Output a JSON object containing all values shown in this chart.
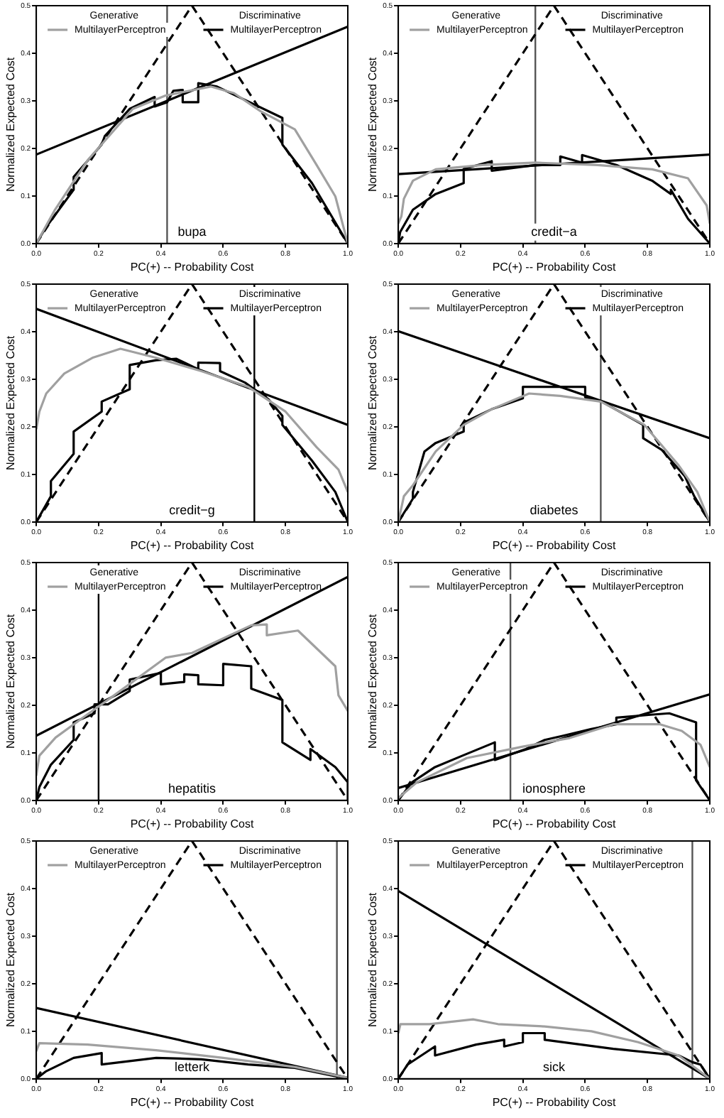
{
  "chart_data": [
    {
      "type": "line",
      "xlabel": "PC(+) -- Probability Cost",
      "ylabel": "Normalized Expected Cost",
      "annotations": [
        "Generative",
        "Discriminative",
        "bupa"
      ],
      "legend": "top",
      "grid": false,
      "xlim": [
        0,
        1
      ],
      "ylim": [
        0,
        0.5
      ],
      "xticks": [
        {
          "value": 0,
          "label": "0.0"
        },
        {
          "value": 0.2,
          "label": "0.2"
        },
        {
          "value": 0.4,
          "label": "0.4"
        },
        {
          "value": 0.6,
          "label": "0.6"
        },
        {
          "value": 0.8,
          "label": "0.8"
        },
        {
          "value": 1,
          "label": "1.0"
        }
      ],
      "yticks": [
        {
          "value": 0,
          "label": "0.0"
        },
        {
          "value": 0.1,
          "label": "0.1"
        },
        {
          "value": 0.2,
          "label": "0.2"
        },
        {
          "value": 0.3,
          "label": "0.3"
        },
        {
          "value": 0.4,
          "label": "0.4"
        },
        {
          "value": 0.5,
          "label": "0.5"
        }
      ],
      "ref_lines": [
        {
          "axis": "x",
          "value": 0.42,
          "color": "#555555"
        }
      ],
      "series": [
        {
          "name": "MultilayerPerceptron",
          "color": "#a0a0a0",
          "x": [
            0,
            0.06,
            0.165,
            0.31,
            0.415,
            0.56,
            0.635,
            0.72,
            0.83,
            0.9,
            0.96,
            1
          ],
          "values": [
            0,
            0.071,
            0.175,
            0.283,
            0.311,
            0.33,
            0.316,
            0.278,
            0.24,
            0.165,
            0.099,
            0
          ]
        },
        {
          "name": "MultilayerPerceptron",
          "color": "#000000",
          "x": [
            0,
            0.03,
            0.12,
            0.12,
            0.21,
            0.22,
            0.3,
            0.38,
            0.38,
            0.42,
            0.44,
            0.47,
            0.47,
            0.52,
            0.52,
            0.58,
            0.79,
            0.79,
            0.885,
            1
          ],
          "values": [
            0,
            0.033,
            0.113,
            0.14,
            0.208,
            0.226,
            0.283,
            0.308,
            0.288,
            0.297,
            0.321,
            0.323,
            0.297,
            0.297,
            0.337,
            0.33,
            0.264,
            0.208,
            0.127,
            0
          ]
        },
        {
          "color": "#000000",
          "x": [
            0,
            1
          ],
          "values": [
            0.187,
            0.456
          ]
        },
        {
          "color": "#000000",
          "line_style": "dashed",
          "x": [
            0,
            0.5,
            1
          ],
          "values": [
            0,
            0.5,
            0
          ]
        }
      ]
    },
    {
      "type": "line",
      "xlabel": "PC(+) -- Probability Cost",
      "ylabel": "Normalized Expected Cost",
      "annotations": [
        "Generative",
        "Discriminative",
        "credit−a"
      ],
      "legend": "top",
      "grid": false,
      "xlim": [
        0,
        1
      ],
      "ylim": [
        0,
        0.5
      ],
      "xticks": [
        {
          "value": 0,
          "label": "0.0"
        },
        {
          "value": 0.2,
          "label": "0.2"
        },
        {
          "value": 0.4,
          "label": "0.4"
        },
        {
          "value": 0.6,
          "label": "0.6"
        },
        {
          "value": 0.8,
          "label": "0.8"
        },
        {
          "value": 1,
          "label": "1.0"
        }
      ],
      "yticks": [
        {
          "value": 0,
          "label": "0.0"
        },
        {
          "value": 0.1,
          "label": "0.1"
        },
        {
          "value": 0.2,
          "label": "0.2"
        },
        {
          "value": 0.3,
          "label": "0.3"
        },
        {
          "value": 0.4,
          "label": "0.4"
        },
        {
          "value": 0.5,
          "label": "0.5"
        }
      ],
      "ref_lines": [
        {
          "axis": "x",
          "value": 0.44,
          "color": "#555555"
        }
      ],
      "series": [
        {
          "name": "MultilayerPerceptron",
          "color": "#a0a0a0",
          "x": [
            0,
            0.01,
            0.018,
            0.047,
            0.12,
            0.27,
            0.44,
            0.64,
            0.815,
            0.93,
            0.99,
            1
          ],
          "values": [
            0.042,
            0.057,
            0.094,
            0.132,
            0.156,
            0.165,
            0.17,
            0.165,
            0.156,
            0.137,
            0.08,
            0.042
          ]
        },
        {
          "name": "MultilayerPerceptron",
          "color": "#000000",
          "x": [
            0,
            0.006,
            0.047,
            0.12,
            0.21,
            0.21,
            0.3,
            0.3,
            0.44,
            0.52,
            0.52,
            0.59,
            0.59,
            0.7,
            0.815,
            0.875,
            0.875,
            0.93,
            1
          ],
          "values": [
            0,
            0.024,
            0.071,
            0.104,
            0.127,
            0.157,
            0.173,
            0.153,
            0.165,
            0.165,
            0.183,
            0.17,
            0.186,
            0.165,
            0.132,
            0.104,
            0.113,
            0.052,
            0
          ]
        },
        {
          "color": "#000000",
          "x": [
            0,
            1
          ],
          "values": [
            0.146,
            0.187
          ]
        },
        {
          "color": "#000000",
          "line_style": "dashed",
          "x": [
            0,
            0.5,
            1
          ],
          "values": [
            0,
            0.5,
            0
          ]
        }
      ]
    },
    {
      "type": "line",
      "xlabel": "PC(+) -- Probability Cost",
      "ylabel": "Normalized Expected Cost",
      "annotations": [
        "Generative",
        "Discriminative",
        "credit−g"
      ],
      "legend": "top",
      "grid": false,
      "xlim": [
        0,
        1
      ],
      "ylim": [
        0,
        0.5
      ],
      "xticks": [
        {
          "value": 0,
          "label": "0.0"
        },
        {
          "value": 0.2,
          "label": "0.2"
        },
        {
          "value": 0.4,
          "label": "0.4"
        },
        {
          "value": 0.6,
          "label": "0.6"
        },
        {
          "value": 0.8,
          "label": "0.8"
        },
        {
          "value": 1,
          "label": "1.0"
        }
      ],
      "yticks": [
        {
          "value": 0,
          "label": "0.0"
        },
        {
          "value": 0.1,
          "label": "0.1"
        },
        {
          "value": 0.2,
          "label": "0.2"
        },
        {
          "value": 0.3,
          "label": "0.3"
        },
        {
          "value": 0.4,
          "label": "0.4"
        },
        {
          "value": 0.5,
          "label": "0.5"
        }
      ],
      "ref_lines": [
        {
          "axis": "x",
          "value": 0.7,
          "color": "#000000"
        }
      ],
      "series": [
        {
          "name": "MultilayerPerceptron",
          "color": "#a0a0a0",
          "x": [
            0,
            0.01,
            0.032,
            0.09,
            0.18,
            0.27,
            0.385,
            0.53,
            0.68,
            0.8,
            0.9,
            0.97,
            1
          ],
          "values": [
            0.195,
            0.232,
            0.27,
            0.312,
            0.345,
            0.364,
            0.345,
            0.317,
            0.284,
            0.232,
            0.157,
            0.11,
            0.063
          ]
        },
        {
          "name": "MultilayerPerceptron",
          "color": "#000000",
          "x": [
            0,
            0.047,
            0.047,
            0.12,
            0.12,
            0.21,
            0.21,
            0.3,
            0.3,
            0.385,
            0.45,
            0.52,
            0.52,
            0.59,
            0.59,
            0.67,
            0.7,
            0.745,
            0.79,
            0.79,
            0.885,
            0.96,
            1
          ],
          "values": [
            0,
            0.054,
            0.086,
            0.143,
            0.19,
            0.232,
            0.253,
            0.279,
            0.33,
            0.34,
            0.343,
            0.321,
            0.335,
            0.334,
            0.317,
            0.293,
            0.279,
            0.258,
            0.223,
            0.204,
            0.129,
            0.063,
            0
          ]
        },
        {
          "color": "#000000",
          "x": [
            0,
            1
          ],
          "values": [
            0.448,
            0.204
          ]
        },
        {
          "color": "#000000",
          "line_style": "dashed",
          "x": [
            0,
            0.5,
            1
          ],
          "values": [
            0,
            0.5,
            0
          ]
        }
      ]
    },
    {
      "type": "line",
      "xlabel": "PC(+) -- Probability Cost",
      "ylabel": "Normalized Expected Cost",
      "annotations": [
        "Generative",
        "Discriminative",
        "diabetes"
      ],
      "legend": "top",
      "grid": false,
      "xlim": [
        0,
        1
      ],
      "ylim": [
        0,
        0.5
      ],
      "xticks": [
        {
          "value": 0,
          "label": "0.0"
        },
        {
          "value": 0.2,
          "label": "0.2"
        },
        {
          "value": 0.4,
          "label": "0.4"
        },
        {
          "value": 0.6,
          "label": "0.6"
        },
        {
          "value": 0.8,
          "label": "0.8"
        },
        {
          "value": 1,
          "label": "1.0"
        }
      ],
      "yticks": [
        {
          "value": 0,
          "label": "0.0"
        },
        {
          "value": 0.1,
          "label": "0.1"
        },
        {
          "value": 0.2,
          "label": "0.2"
        },
        {
          "value": 0.3,
          "label": "0.3"
        },
        {
          "value": 0.4,
          "label": "0.4"
        },
        {
          "value": 0.5,
          "label": "0.5"
        }
      ],
      "ref_lines": [
        {
          "axis": "x",
          "value": 0.65,
          "color": "#555555"
        }
      ],
      "series": [
        {
          "name": "MultilayerPerceptron",
          "color": "#a0a0a0",
          "x": [
            0,
            0.018,
            0.047,
            0.12,
            0.21,
            0.3,
            0.42,
            0.52,
            0.65,
            0.79,
            0.9,
            0.96,
            1
          ],
          "values": [
            0,
            0.054,
            0.077,
            0.148,
            0.204,
            0.237,
            0.27,
            0.265,
            0.253,
            0.204,
            0.119,
            0.063,
            0
          ]
        },
        {
          "name": "MultilayerPerceptron",
          "color": "#000000",
          "x": [
            0,
            0.047,
            0.047,
            0.084,
            0.12,
            0.21,
            0.21,
            0.3,
            0.4,
            0.4,
            0.6,
            0.6,
            0.653,
            0.786,
            0.786,
            0.845,
            0.92,
            0.95,
            1
          ],
          "values": [
            0,
            0.049,
            0.063,
            0.148,
            0.166,
            0.19,
            0.209,
            0.237,
            0.26,
            0.284,
            0.284,
            0.262,
            0.253,
            0.204,
            0.176,
            0.152,
            0.096,
            0.054,
            0
          ]
        },
        {
          "color": "#000000",
          "x": [
            0,
            1
          ],
          "values": [
            0.401,
            0.176
          ]
        },
        {
          "color": "#000000",
          "line_style": "dashed",
          "x": [
            0,
            0.5,
            1
          ],
          "values": [
            0,
            0.5,
            0
          ]
        }
      ]
    },
    {
      "type": "line",
      "xlabel": "PC(+) -- Probability Cost",
      "ylabel": "Normalized Expected Cost",
      "annotations": [
        "Generative",
        "Discriminative",
        "hepatitis"
      ],
      "legend": "top",
      "grid": false,
      "xlim": [
        0,
        1
      ],
      "ylim": [
        0,
        0.5
      ],
      "xticks": [
        {
          "value": 0,
          "label": "0.0"
        },
        {
          "value": 0.2,
          "label": "0.2"
        },
        {
          "value": 0.4,
          "label": "0.4"
        },
        {
          "value": 0.6,
          "label": "0.6"
        },
        {
          "value": 0.8,
          "label": "0.8"
        },
        {
          "value": 1,
          "label": "1.0"
        }
      ],
      "yticks": [
        {
          "value": 0,
          "label": "0.0"
        },
        {
          "value": 0.1,
          "label": "0.1"
        },
        {
          "value": 0.2,
          "label": "0.2"
        },
        {
          "value": 0.3,
          "label": "0.3"
        },
        {
          "value": 0.4,
          "label": "0.4"
        },
        {
          "value": 0.5,
          "label": "0.5"
        }
      ],
      "ref_lines": [
        {
          "axis": "x",
          "value": 0.2,
          "color": "#000000"
        }
      ],
      "series": [
        {
          "name": "MultilayerPerceptron",
          "color": "#a0a0a0",
          "x": [
            0,
            0.01,
            0.062,
            0.15,
            0.24,
            0.415,
            0.5,
            0.69,
            0.74,
            0.74,
            0.84,
            0.96,
            0.97,
            1
          ],
          "values": [
            0.052,
            0.094,
            0.132,
            0.174,
            0.216,
            0.3,
            0.31,
            0.368,
            0.37,
            0.347,
            0.357,
            0.282,
            0.221,
            0.188
          ]
        },
        {
          "name": "MultilayerPerceptron",
          "color": "#000000",
          "x": [
            0,
            0.01,
            0.047,
            0.12,
            0.12,
            0.187,
            0.187,
            0.23,
            0.3,
            0.3,
            0.4,
            0.4,
            0.475,
            0.475,
            0.52,
            0.52,
            0.6,
            0.6,
            0.69,
            0.69,
            0.79,
            0.79,
            0.88,
            0.88,
            0.96,
            1,
            1
          ],
          "values": [
            0,
            0.028,
            0.075,
            0.127,
            0.164,
            0.183,
            0.202,
            0.202,
            0.23,
            0.254,
            0.268,
            0.244,
            0.249,
            0.265,
            0.263,
            0.244,
            0.242,
            0.287,
            0.282,
            0.235,
            0.211,
            0.122,
            0.085,
            0.108,
            0.07,
            0.038,
            0
          ]
        },
        {
          "color": "#000000",
          "x": [
            0,
            1
          ],
          "values": [
            0.136,
            0.47
          ]
        },
        {
          "color": "#000000",
          "line_style": "dashed",
          "x": [
            0,
            0.5,
            1
          ],
          "values": [
            0,
            0.5,
            0
          ]
        }
      ]
    },
    {
      "type": "line",
      "xlabel": "PC(+) -- Probability Cost",
      "ylabel": "Normalized Expected Cost",
      "annotations": [
        "Generative",
        "Discriminative",
        "ionosphere"
      ],
      "legend": "top",
      "grid": false,
      "xlim": [
        0,
        1
      ],
      "ylim": [
        0,
        0.5
      ],
      "xticks": [
        {
          "value": 0,
          "label": "0.0"
        },
        {
          "value": 0.2,
          "label": "0.2"
        },
        {
          "value": 0.4,
          "label": "0.4"
        },
        {
          "value": 0.6,
          "label": "0.6"
        },
        {
          "value": 0.8,
          "label": "0.8"
        },
        {
          "value": 1,
          "label": "1.0"
        }
      ],
      "yticks": [
        {
          "value": 0,
          "label": "0.0"
        },
        {
          "value": 0.1,
          "label": "0.1"
        },
        {
          "value": 0.2,
          "label": "0.2"
        },
        {
          "value": 0.3,
          "label": "0.3"
        },
        {
          "value": 0.4,
          "label": "0.4"
        },
        {
          "value": 0.5,
          "label": "0.5"
        }
      ],
      "ref_lines": [
        {
          "axis": "x",
          "value": 0.36,
          "color": "#555555"
        }
      ],
      "series": [
        {
          "name": "MultilayerPerceptron",
          "color": "#a0a0a0",
          "x": [
            0,
            0.06,
            0.22,
            0.4,
            0.55,
            0.69,
            0.84,
            0.91,
            0.97,
            1
          ],
          "values": [
            0.005,
            0.038,
            0.089,
            0.113,
            0.131,
            0.16,
            0.16,
            0.146,
            0.117,
            0.07
          ]
        },
        {
          "name": "MultilayerPerceptron",
          "color": "#000000",
          "x": [
            0,
            0.044,
            0.118,
            0.206,
            0.31,
            0.31,
            0.41,
            0.47,
            0.53,
            0.62,
            0.7,
            0.7,
            0.81,
            0.87,
            0.956,
            0.956,
            1
          ],
          "values": [
            0,
            0.038,
            0.07,
            0.094,
            0.122,
            0.085,
            0.108,
            0.127,
            0.136,
            0.15,
            0.16,
            0.174,
            0.18,
            0.183,
            0.164,
            0.042,
            0
          ]
        },
        {
          "color": "#000000",
          "x": [
            0,
            1
          ],
          "values": [
            0.026,
            0.223
          ]
        },
        {
          "color": "#000000",
          "line_style": "dashed",
          "x": [
            0,
            0.5,
            1
          ],
          "values": [
            0,
            0.5,
            0
          ]
        }
      ]
    },
    {
      "type": "line",
      "xlabel": "PC(+) -- Probability Cost",
      "ylabel": "Normalized Expected Cost",
      "annotations": [
        "Generative",
        "Discriminative",
        "letterk"
      ],
      "legend": "top",
      "grid": false,
      "xlim": [
        0,
        1
      ],
      "ylim": [
        0,
        0.5
      ],
      "xticks": [
        {
          "value": 0,
          "label": "0.0"
        },
        {
          "value": 0.2,
          "label": "0.2"
        },
        {
          "value": 0.4,
          "label": "0.4"
        },
        {
          "value": 0.6,
          "label": "0.6"
        },
        {
          "value": 0.8,
          "label": "0.8"
        },
        {
          "value": 1,
          "label": "1.0"
        }
      ],
      "yticks": [
        {
          "value": 0,
          "label": "0.0"
        },
        {
          "value": 0.1,
          "label": "0.1"
        },
        {
          "value": 0.2,
          "label": "0.2"
        },
        {
          "value": 0.3,
          "label": "0.3"
        },
        {
          "value": 0.4,
          "label": "0.4"
        },
        {
          "value": 0.5,
          "label": "0.5"
        }
      ],
      "ref_lines": [
        {
          "axis": "x",
          "value": 0.965,
          "color": "#555555"
        }
      ],
      "series": [
        {
          "name": "MultilayerPerceptron",
          "color": "#a0a0a0",
          "x": [
            0,
            0.01,
            0.165,
            0.385,
            0.6,
            0.83,
            1
          ],
          "values": [
            0.058,
            0.075,
            0.072,
            0.06,
            0.044,
            0.025,
            0.002
          ]
        },
        {
          "name": "MultilayerPerceptron",
          "color": "#000000",
          "x": [
            0,
            0.032,
            0.12,
            0.21,
            0.21,
            0.385,
            0.53,
            0.68,
            0.83,
            1
          ],
          "values": [
            0,
            0.016,
            0.044,
            0.054,
            0.03,
            0.044,
            0.041,
            0.03,
            0.023,
            0
          ]
        },
        {
          "color": "#000000",
          "x": [
            0,
            1
          ],
          "values": [
            0.149,
            0.002
          ]
        },
        {
          "color": "#000000",
          "line_style": "dashed",
          "x": [
            0,
            0.5,
            1
          ],
          "values": [
            0,
            0.5,
            0
          ]
        }
      ]
    },
    {
      "type": "line",
      "xlabel": "PC(+) -- Probability Cost",
      "ylabel": "Normalized Expected Cost",
      "annotations": [
        "Generative",
        "Discriminative",
        "sick"
      ],
      "legend": "top",
      "grid": false,
      "xlim": [
        0,
        1
      ],
      "ylim": [
        0,
        0.5
      ],
      "xticks": [
        {
          "value": 0,
          "label": "0.0"
        },
        {
          "value": 0.2,
          "label": "0.2"
        },
        {
          "value": 0.4,
          "label": "0.4"
        },
        {
          "value": 0.6,
          "label": "0.6"
        },
        {
          "value": 0.8,
          "label": "0.8"
        },
        {
          "value": 1,
          "label": "1.0"
        }
      ],
      "yticks": [
        {
          "value": 0,
          "label": "0.0"
        },
        {
          "value": 0.1,
          "label": "0.1"
        },
        {
          "value": 0.2,
          "label": "0.2"
        },
        {
          "value": 0.3,
          "label": "0.3"
        },
        {
          "value": 0.4,
          "label": "0.4"
        },
        {
          "value": 0.5,
          "label": "0.5"
        }
      ],
      "ref_lines": [
        {
          "axis": "x",
          "value": 0.944,
          "color": "#555555"
        }
      ],
      "series": [
        {
          "name": "MultilayerPerceptron",
          "color": "#a0a0a0",
          "x": [
            0,
            0.007,
            0.1,
            0.24,
            0.32,
            0.47,
            0.62,
            0.77,
            0.9,
            1
          ],
          "values": [
            0.096,
            0.115,
            0.115,
            0.125,
            0.115,
            0.11,
            0.1,
            0.077,
            0.049,
            0
          ]
        },
        {
          "name": "MultilayerPerceptron",
          "color": "#000000",
          "x": [
            0,
            0.03,
            0.118,
            0.118,
            0.25,
            0.34,
            0.34,
            0.4,
            0.4,
            0.47,
            0.47,
            0.69,
            0.9,
            0.944,
            0.97,
            1
          ],
          "values": [
            0,
            0.03,
            0.068,
            0.049,
            0.072,
            0.082,
            0.068,
            0.077,
            0.096,
            0.096,
            0.082,
            0.063,
            0.049,
            0.035,
            0.03,
            0
          ]
        },
        {
          "color": "#000000",
          "x": [
            0,
            1
          ],
          "values": [
            0.395,
            0
          ]
        },
        {
          "color": "#000000",
          "line_style": "dashed",
          "x": [
            0,
            0.5,
            1
          ],
          "values": [
            0,
            0.5,
            0
          ]
        }
      ]
    }
  ]
}
